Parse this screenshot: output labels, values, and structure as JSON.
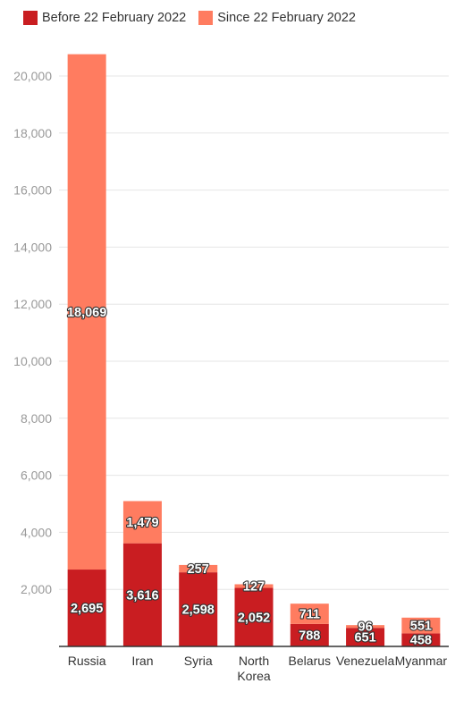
{
  "chart_data": {
    "type": "bar",
    "stacked": true,
    "categories": [
      "Russia",
      "Iran",
      "Syria",
      "North Korea",
      "Belarus",
      "Venezuela",
      "Myanmar"
    ],
    "category_lines": [
      [
        "Russia"
      ],
      [
        "Iran"
      ],
      [
        "Syria"
      ],
      [
        "North",
        "Korea"
      ],
      [
        "Belarus"
      ],
      [
        "Venezuela"
      ],
      [
        "Myanmar"
      ]
    ],
    "series": [
      {
        "name": "Before 22 February 2022",
        "color": "#c91d21",
        "values": [
          2695,
          3616,
          2598,
          2052,
          788,
          651,
          458
        ]
      },
      {
        "name": "Since 22 February 2022",
        "color": "#ff7c60",
        "values": [
          18069,
          1479,
          257,
          127,
          711,
          96,
          551
        ]
      }
    ],
    "data_labels": [
      [
        "2,695",
        "3,616",
        "2,598",
        "2,052",
        "788",
        "651",
        "458"
      ],
      [
        "18,069",
        "1,479",
        "257",
        "127",
        "711",
        "96",
        "551"
      ]
    ],
    "y_ticks": [
      2000,
      4000,
      6000,
      8000,
      10000,
      12000,
      14000,
      16000,
      18000,
      20000
    ],
    "y_tick_labels": [
      "2,000",
      "4,000",
      "6,000",
      "8,000",
      "10,000",
      "12,000",
      "14,000",
      "16,000",
      "18,000",
      "20,000"
    ],
    "ylim": [
      0,
      20000
    ],
    "grid": true,
    "legend": "top-left"
  }
}
